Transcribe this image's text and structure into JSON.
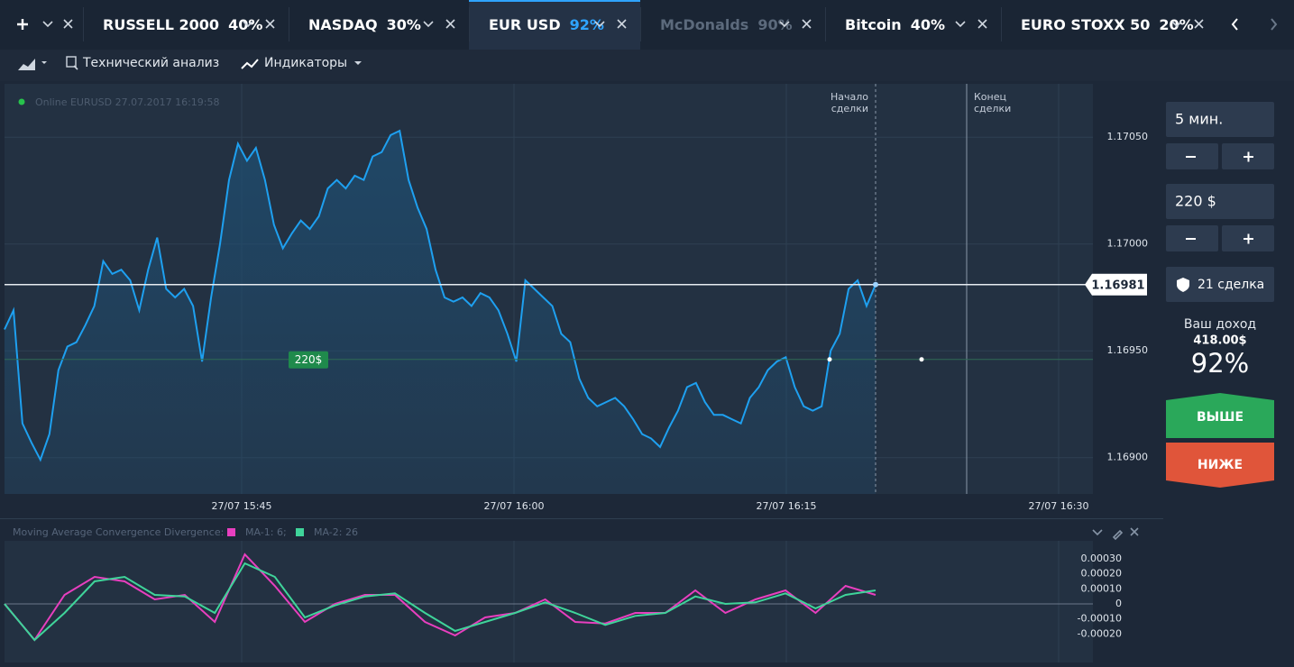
{
  "tabs": [
    {
      "name": "RUSSELL 2000",
      "payout": "40%"
    },
    {
      "name": "NASDAQ",
      "payout": "30%"
    },
    {
      "name": "EUR USD",
      "payout": "92%"
    },
    {
      "name": "McDonalds",
      "payout": "90%"
    },
    {
      "name": "Bitcoin",
      "payout": "40%"
    },
    {
      "name": "EURO STOXX 50",
      "payout": "20%"
    }
  ],
  "active_tab": 2,
  "disabled_tab": 3,
  "toolbar": {
    "analysis": "Технический анализ",
    "indicators": "Индикаторы"
  },
  "chart_data": {
    "type": "line",
    "status": "Online EURUSD 27.07.2017 16:19:58",
    "start_marker": [
      "Начало",
      "сделки"
    ],
    "end_marker": [
      "Конец",
      "сделки"
    ],
    "xticks": [
      "27/07 15:45",
      "27/07 16:00",
      "27/07 16:15",
      "27/07 16:30"
    ],
    "ylim": [
      1.16883,
      1.17075
    ],
    "yticks": [
      {
        "value": 1.1705,
        "label": "1.17050"
      },
      {
        "value": 1.17,
        "label": "1.17000"
      },
      {
        "value": 1.1695,
        "label": "1.16950"
      },
      {
        "value": 1.169,
        "label": "1.16900"
      }
    ],
    "color": "#1ea0f0",
    "values": [
      1.1696,
      1.16969,
      1.16916,
      1.16907,
      1.16899,
      1.16911,
      1.16941,
      1.16952,
      1.16954,
      1.16962,
      1.16971,
      1.16992,
      1.16986,
      1.16988,
      1.16983,
      1.16969,
      1.16988,
      1.17003,
      1.16979,
      1.16975,
      1.16979,
      1.16971,
      1.16945,
      1.16975,
      1.17,
      1.1703,
      1.17047,
      1.17039,
      1.17045,
      1.1703,
      1.17009,
      1.16998,
      1.17005,
      1.17011,
      1.17007,
      1.17013,
      1.17026,
      1.1703,
      1.17026,
      1.17032,
      1.1703,
      1.17041,
      1.17043,
      1.17051,
      1.17053,
      1.1703,
      1.17017,
      1.17007,
      1.16988,
      1.16975,
      1.16973,
      1.16975,
      1.16971,
      1.16977,
      1.16975,
      1.16969,
      1.16958,
      1.16945,
      1.16983,
      1.16979,
      1.16975,
      1.16971,
      1.16958,
      1.16954,
      1.16937,
      1.16928,
      1.16924,
      1.16926,
      1.16928,
      1.16924,
      1.16918,
      1.16911,
      1.16909,
      1.16905,
      1.16914,
      1.16922,
      1.16933,
      1.16935,
      1.16926,
      1.1692,
      1.1692,
      1.16918,
      1.16916,
      1.16928,
      1.16933,
      1.16941,
      1.16945,
      1.16947,
      1.16933,
      1.16924,
      1.16922,
      1.16924,
      1.1695,
      1.16958,
      1.16979,
      1.16983,
      1.16971,
      1.16981
    ],
    "current_price": 1.16981,
    "trade": {
      "label": "220$",
      "price": 1.16946
    }
  },
  "macd": {
    "type": "line",
    "title": "Moving Average Convergence Divergence:",
    "ylim": [
      -0.00039,
      0.00042
    ],
    "yticks": [
      {
        "value": 0.0003,
        "label": "0.00030"
      },
      {
        "value": 0.0002,
        "label": "0.00020"
      },
      {
        "value": 0.0001,
        "label": "0.00010"
      },
      0,
      {
        "value": -0.0001,
        "label": "-0.00010"
      },
      {
        "value": -0.0002,
        "label": "-0.00020"
      }
    ],
    "series": [
      {
        "name": "MA-1: 6;",
        "color": "#e83fbf",
        "values": [
          0,
          -0.00024,
          6e-05,
          0.00018,
          0.00015,
          3e-05,
          6e-05,
          -0.00012,
          0.00033,
          0.00012,
          -0.00012,
          0,
          6e-05,
          6e-05,
          -0.00012,
          -0.00021,
          -9e-05,
          -6e-05,
          3e-05,
          -0.00012,
          -0.00013,
          -6e-05,
          -6e-05,
          9e-05,
          -6e-05,
          3e-05,
          9e-05,
          -6e-05,
          0.00012,
          6e-05
        ]
      },
      {
        "name": "MA-2: 26",
        "color": "#3fd49a",
        "values": [
          0,
          -0.00024,
          -6e-05,
          0.00015,
          0.00018,
          6e-05,
          5e-05,
          -6e-05,
          0.00027,
          0.00018,
          -9e-05,
          -1e-05,
          5e-05,
          7e-05,
          -6e-05,
          -0.00018,
          -0.00012,
          -6e-05,
          1e-05,
          -6e-05,
          -0.00014,
          -8e-05,
          -6e-05,
          5e-05,
          0,
          1e-05,
          7e-05,
          -3e-05,
          6e-05,
          9e-05
        ]
      }
    ]
  },
  "panel": {
    "time": "5 мин.",
    "amount": "220 $",
    "deals": "21 сделка",
    "income_label": "Ваш доход",
    "income": "418.00$",
    "payout": "92%",
    "up": "ВЫШЕ",
    "down": "НИЖЕ"
  }
}
